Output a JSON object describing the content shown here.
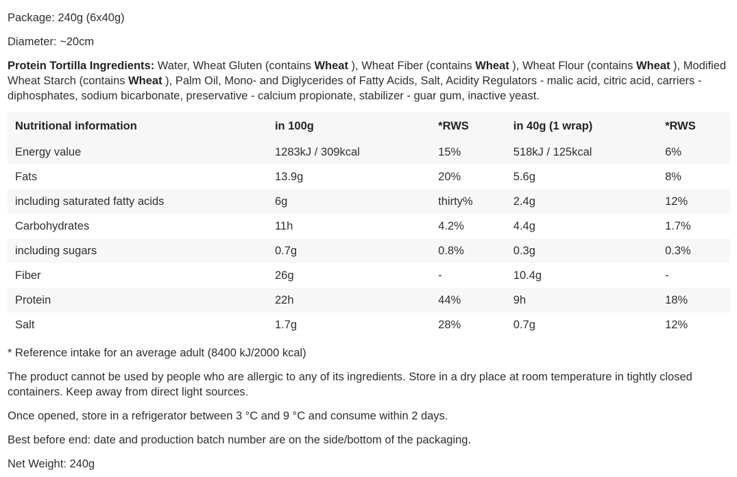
{
  "colors": {
    "text": "#2e2e2e",
    "background": "#ffffff",
    "table_stripe": "#f7f7f7"
  },
  "header": {
    "package_line": "Package: 240g (6x40g)",
    "diameter_line": "Diameter: ~20cm"
  },
  "ingredients": {
    "segments": [
      {
        "text": "Protein Tortilla Ingredients:",
        "bold": true
      },
      {
        "text": "  Water, Wheat Gluten (contains ",
        "bold": false
      },
      {
        "text": "Wheat",
        "bold": true
      },
      {
        "text": " ), Wheat Fiber (contains ",
        "bold": false
      },
      {
        "text": "Wheat",
        "bold": true
      },
      {
        "text": " ), Wheat Flour (contains ",
        "bold": false
      },
      {
        "text": "Wheat",
        "bold": true
      },
      {
        "text": " ), Modified Wheat Starch (contains ",
        "bold": false
      },
      {
        "text": "Wheat",
        "bold": true
      },
      {
        "text": " ), Palm Oil, Mono- and Diglycerides of Fatty Acids, Salt, Acidity Regulators - malic acid, citric acid, carriers - diphosphates, sodium bicarbonate, preservative - calcium propionate, stabilizer - guar gum, inactive yeast.",
        "bold": false
      }
    ]
  },
  "nutrition_table": {
    "headers": [
      "Nutritional information",
      "in 100g",
      "*RWS",
      "in 40g (1 wrap)",
      "*RWS"
    ],
    "col_widths": [
      "37.0%",
      "22.6%",
      "10.4%",
      "21.0%",
      "9.0%"
    ],
    "rows": [
      [
        "Energy value",
        "1283kJ / 309kcal",
        "15%",
        "518kJ / 125kcal",
        "6%"
      ],
      [
        "Fats",
        "13.9g",
        "20%",
        "5.6g",
        "8%"
      ],
      [
        "including saturated fatty acids",
        "6g",
        "thirty%",
        "2.4g",
        "12%"
      ],
      [
        "Carbohydrates",
        "11h",
        "4.2%",
        "4.4g",
        "1.7%"
      ],
      [
        "including sugars",
        "0.7g",
        "0.8%",
        "0.3g",
        "0.3%"
      ],
      [
        "Fiber",
        "26g",
        "-",
        "10.4g",
        "-"
      ],
      [
        "Protein",
        "22h",
        "44%",
        "9h",
        "18%"
      ],
      [
        "Salt",
        "1.7g",
        "28%",
        "0.7g",
        "12%"
      ]
    ]
  },
  "footnotes": {
    "reference_note": "* Reference intake for an average adult (8400 kJ/2000 kcal)",
    "allergy_storage_note": "The product cannot be used by people who are allergic to any of its ingredients. Store in a dry place at room temperature in tightly closed containers. Keep away from direct light sources.",
    "opened_storage_note": "Once opened, store in a refrigerator between 3 °C  and 9 °C and consume within 2 days.",
    "best_before_note": "Best before end: date and production batch number are on the side/bottom of the packaging.",
    "net_weight_line": "Net Weight: 240g"
  }
}
